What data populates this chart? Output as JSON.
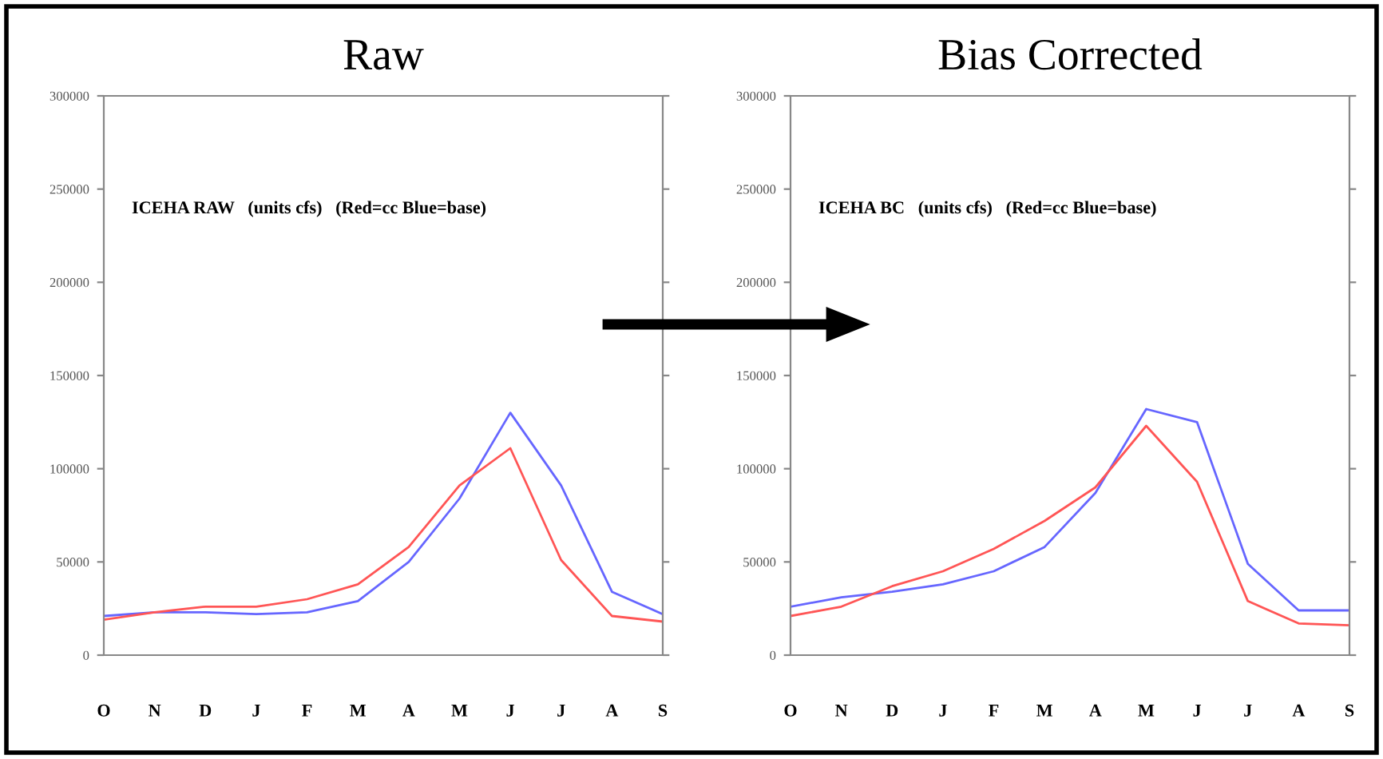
{
  "chart_data": [
    {
      "type": "line",
      "title": "Raw",
      "annotations": [
        "ICEHA RAW   (units cfs)   (Red=cc Blue=base)"
      ],
      "categories": [
        "O",
        "N",
        "D",
        "J",
        "F",
        "M",
        "A",
        "M",
        "J",
        "J",
        "A",
        "S"
      ],
      "ylim": [
        0,
        300000
      ],
      "yticks": [
        0,
        50000,
        100000,
        150000,
        200000,
        250000,
        300000
      ],
      "grid": false,
      "legend": false,
      "marker": "none",
      "line_style": "solid",
      "series": [
        {
          "color": "#6666ff",
          "values": [
            21000,
            23000,
            23000,
            22000,
            23000,
            29000,
            50000,
            84000,
            130000,
            91000,
            34000,
            22000
          ]
        },
        {
          "color": "#ff5555",
          "values": [
            19000,
            23000,
            26000,
            26000,
            30000,
            38000,
            58000,
            91000,
            111000,
            51000,
            21000,
            18000
          ]
        }
      ]
    },
    {
      "type": "line",
      "title": "Bias Corrected",
      "annotations": [
        "ICEHA BC   (units cfs)   (Red=cc Blue=base)"
      ],
      "categories": [
        "O",
        "N",
        "D",
        "J",
        "F",
        "M",
        "A",
        "M",
        "J",
        "J",
        "A",
        "S"
      ],
      "ylim": [
        0,
        300000
      ],
      "yticks": [
        0,
        50000,
        100000,
        150000,
        200000,
        250000,
        300000
      ],
      "grid": false,
      "legend": false,
      "marker": "none",
      "line_style": "solid",
      "series": [
        {
          "color": "#6666ff",
          "values": [
            26000,
            31000,
            34000,
            38000,
            45000,
            58000,
            87000,
            132000,
            125000,
            49000,
            24000,
            24000
          ]
        },
        {
          "color": "#ff5555",
          "values": [
            21000,
            26000,
            37000,
            45000,
            57000,
            72000,
            90000,
            123000,
            93000,
            29000,
            17000,
            16000
          ]
        }
      ]
    }
  ]
}
